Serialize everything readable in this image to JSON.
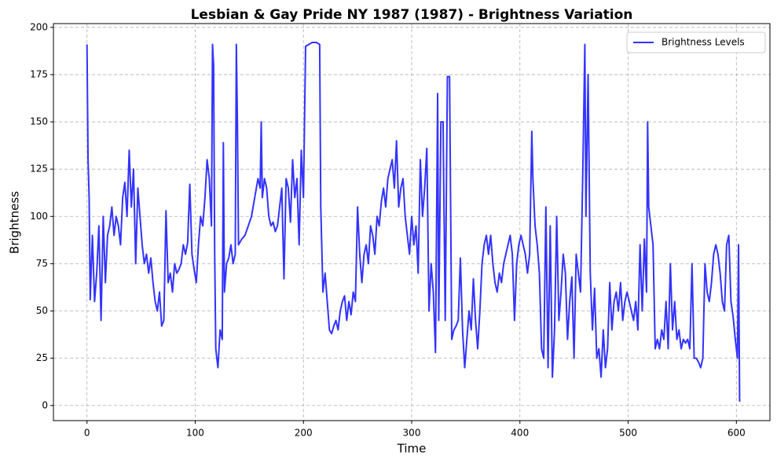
{
  "chart_data": {
    "type": "line",
    "title": "Lesbian & Gay Pride NY 1987 (1987) - Brightness Variation",
    "x_label": "Time",
    "y_label": "Brightness",
    "xlim": [
      -31,
      631
    ],
    "ylim": [
      -8,
      202
    ],
    "xticks": [
      0,
      100,
      200,
      300,
      400,
      500,
      600
    ],
    "yticks": [
      0,
      25,
      50,
      75,
      100,
      125,
      150,
      175,
      200
    ],
    "grid": true,
    "legend": "upper right",
    "x": [
      0,
      1,
      2,
      3,
      5,
      7,
      9,
      11,
      13,
      15,
      17,
      19,
      21,
      23,
      25,
      27,
      29,
      31,
      33,
      35,
      37,
      39,
      41,
      43,
      45,
      47,
      49,
      51,
      53,
      55,
      57,
      59,
      61,
      63,
      65,
      67,
      69,
      71,
      73,
      75,
      77,
      79,
      81,
      83,
      85,
      87,
      89,
      91,
      93,
      95,
      97,
      99,
      101,
      103,
      105,
      107,
      109,
      111,
      113,
      115,
      116,
      117,
      118,
      119,
      120,
      121,
      123,
      125,
      126,
      127,
      129,
      131,
      133,
      135,
      137,
      138,
      139,
      140,
      143,
      146,
      149,
      152,
      155,
      158,
      160,
      161,
      162,
      164,
      166,
      168,
      170,
      172,
      174,
      176,
      178,
      180,
      182,
      184,
      186,
      188,
      190,
      192,
      194,
      196,
      198,
      200,
      202,
      205,
      208,
      212,
      215,
      216,
      218,
      220,
      222,
      224,
      226,
      228,
      230,
      232,
      234,
      236,
      238,
      240,
      242,
      244,
      246,
      248,
      250,
      252,
      254,
      256,
      258,
      260,
      262,
      264,
      266,
      268,
      270,
      272,
      274,
      276,
      278,
      280,
      282,
      284,
      286,
      288,
      290,
      292,
      294,
      296,
      298,
      300,
      302,
      304,
      306,
      308,
      310,
      312,
      314,
      316,
      318,
      320,
      322,
      324,
      325,
      327,
      329,
      331,
      333,
      335,
      337,
      339,
      341,
      343,
      345,
      347,
      349,
      351,
      353,
      355,
      357,
      359,
      361,
      363,
      365,
      367,
      369,
      371,
      373,
      375,
      377,
      379,
      381,
      383,
      385,
      387,
      389,
      391,
      393,
      395,
      397,
      399,
      401,
      403,
      405,
      407,
      409,
      411,
      412,
      414,
      416,
      418,
      420,
      422,
      424,
      426,
      428,
      430,
      432,
      434,
      436,
      438,
      440,
      442,
      444,
      446,
      448,
      450,
      452,
      454,
      456,
      458,
      460,
      461,
      463,
      465,
      467,
      469,
      471,
      473,
      475,
      477,
      479,
      481,
      483,
      485,
      487,
      489,
      491,
      493,
      495,
      497,
      499,
      501,
      503,
      505,
      507,
      509,
      511,
      513,
      515,
      517,
      518,
      519,
      521,
      523,
      525,
      527,
      529,
      531,
      533,
      535,
      537,
      539,
      541,
      543,
      545,
      547,
      549,
      551,
      553,
      555,
      557,
      559,
      561,
      563,
      565,
      567,
      569,
      571,
      573,
      575,
      577,
      579,
      581,
      583,
      585,
      587,
      589,
      591,
      593,
      595,
      597,
      599,
      601,
      602,
      603
    ],
    "series": [
      {
        "name": "Brightness Levels",
        "color": "#3333ff",
        "values": [
          191,
          130,
          110,
          56,
          90,
          55,
          70,
          95,
          45,
          100,
          65,
          90,
          95,
          105,
          90,
          100,
          95,
          85,
          110,
          118,
          100,
          135,
          105,
          125,
          75,
          115,
          100,
          85,
          75,
          80,
          70,
          78,
          65,
          55,
          50,
          60,
          42,
          45,
          103,
          65,
          70,
          60,
          75,
          70,
          72,
          75,
          85,
          80,
          86,
          117,
          80,
          72,
          65,
          85,
          100,
          95,
          110,
          130,
          120,
          95,
          191,
          180,
          80,
          30,
          25,
          20,
          40,
          35,
          139,
          60,
          75,
          78,
          85,
          75,
          80,
          191,
          150,
          85,
          88,
          90,
          95,
          100,
          110,
          120,
          115,
          150,
          110,
          120,
          115,
          100,
          95,
          97,
          92,
          95,
          105,
          115,
          67,
          120,
          115,
          97,
          130,
          110,
          120,
          85,
          135,
          110,
          190,
          191,
          192,
          192,
          191,
          105,
          60,
          70,
          55,
          40,
          38,
          42,
          45,
          40,
          50,
          55,
          58,
          45,
          55,
          48,
          60,
          55,
          105,
          80,
          65,
          80,
          85,
          75,
          95,
          90,
          80,
          100,
          95,
          108,
          115,
          105,
          120,
          125,
          130,
          115,
          140,
          105,
          115,
          120,
          100,
          90,
          80,
          100,
          85,
          95,
          70,
          130,
          100,
          115,
          136,
          50,
          75,
          60,
          28,
          165,
          45,
          150,
          150,
          45,
          174,
          174,
          35,
          40,
          42,
          45,
          78,
          40,
          20,
          35,
          50,
          40,
          67,
          45,
          30,
          50,
          75,
          85,
          90,
          80,
          90,
          75,
          65,
          60,
          70,
          65,
          75,
          80,
          85,
          90,
          80,
          45,
          75,
          85,
          90,
          85,
          80,
          70,
          80,
          145,
          120,
          95,
          85,
          70,
          30,
          25,
          105,
          20,
          95,
          15,
          40,
          100,
          45,
          60,
          80,
          70,
          35,
          55,
          68,
          25,
          80,
          70,
          60,
          120,
          191,
          100,
          175,
          70,
          40,
          62,
          25,
          30,
          15,
          40,
          20,
          30,
          65,
          40,
          55,
          60,
          50,
          65,
          45,
          55,
          60,
          55,
          50,
          45,
          55,
          40,
          85,
          50,
          88,
          60,
          150,
          105,
          95,
          85,
          30,
          35,
          30,
          40,
          35,
          55,
          30,
          75,
          40,
          55,
          35,
          40,
          30,
          35,
          33,
          35,
          30,
          75,
          25,
          25,
          23,
          20,
          25,
          75,
          60,
          55,
          65,
          80,
          85,
          80,
          70,
          55,
          50,
          85,
          90,
          55,
          47,
          35,
          25,
          85,
          2
        ]
      }
    ]
  }
}
